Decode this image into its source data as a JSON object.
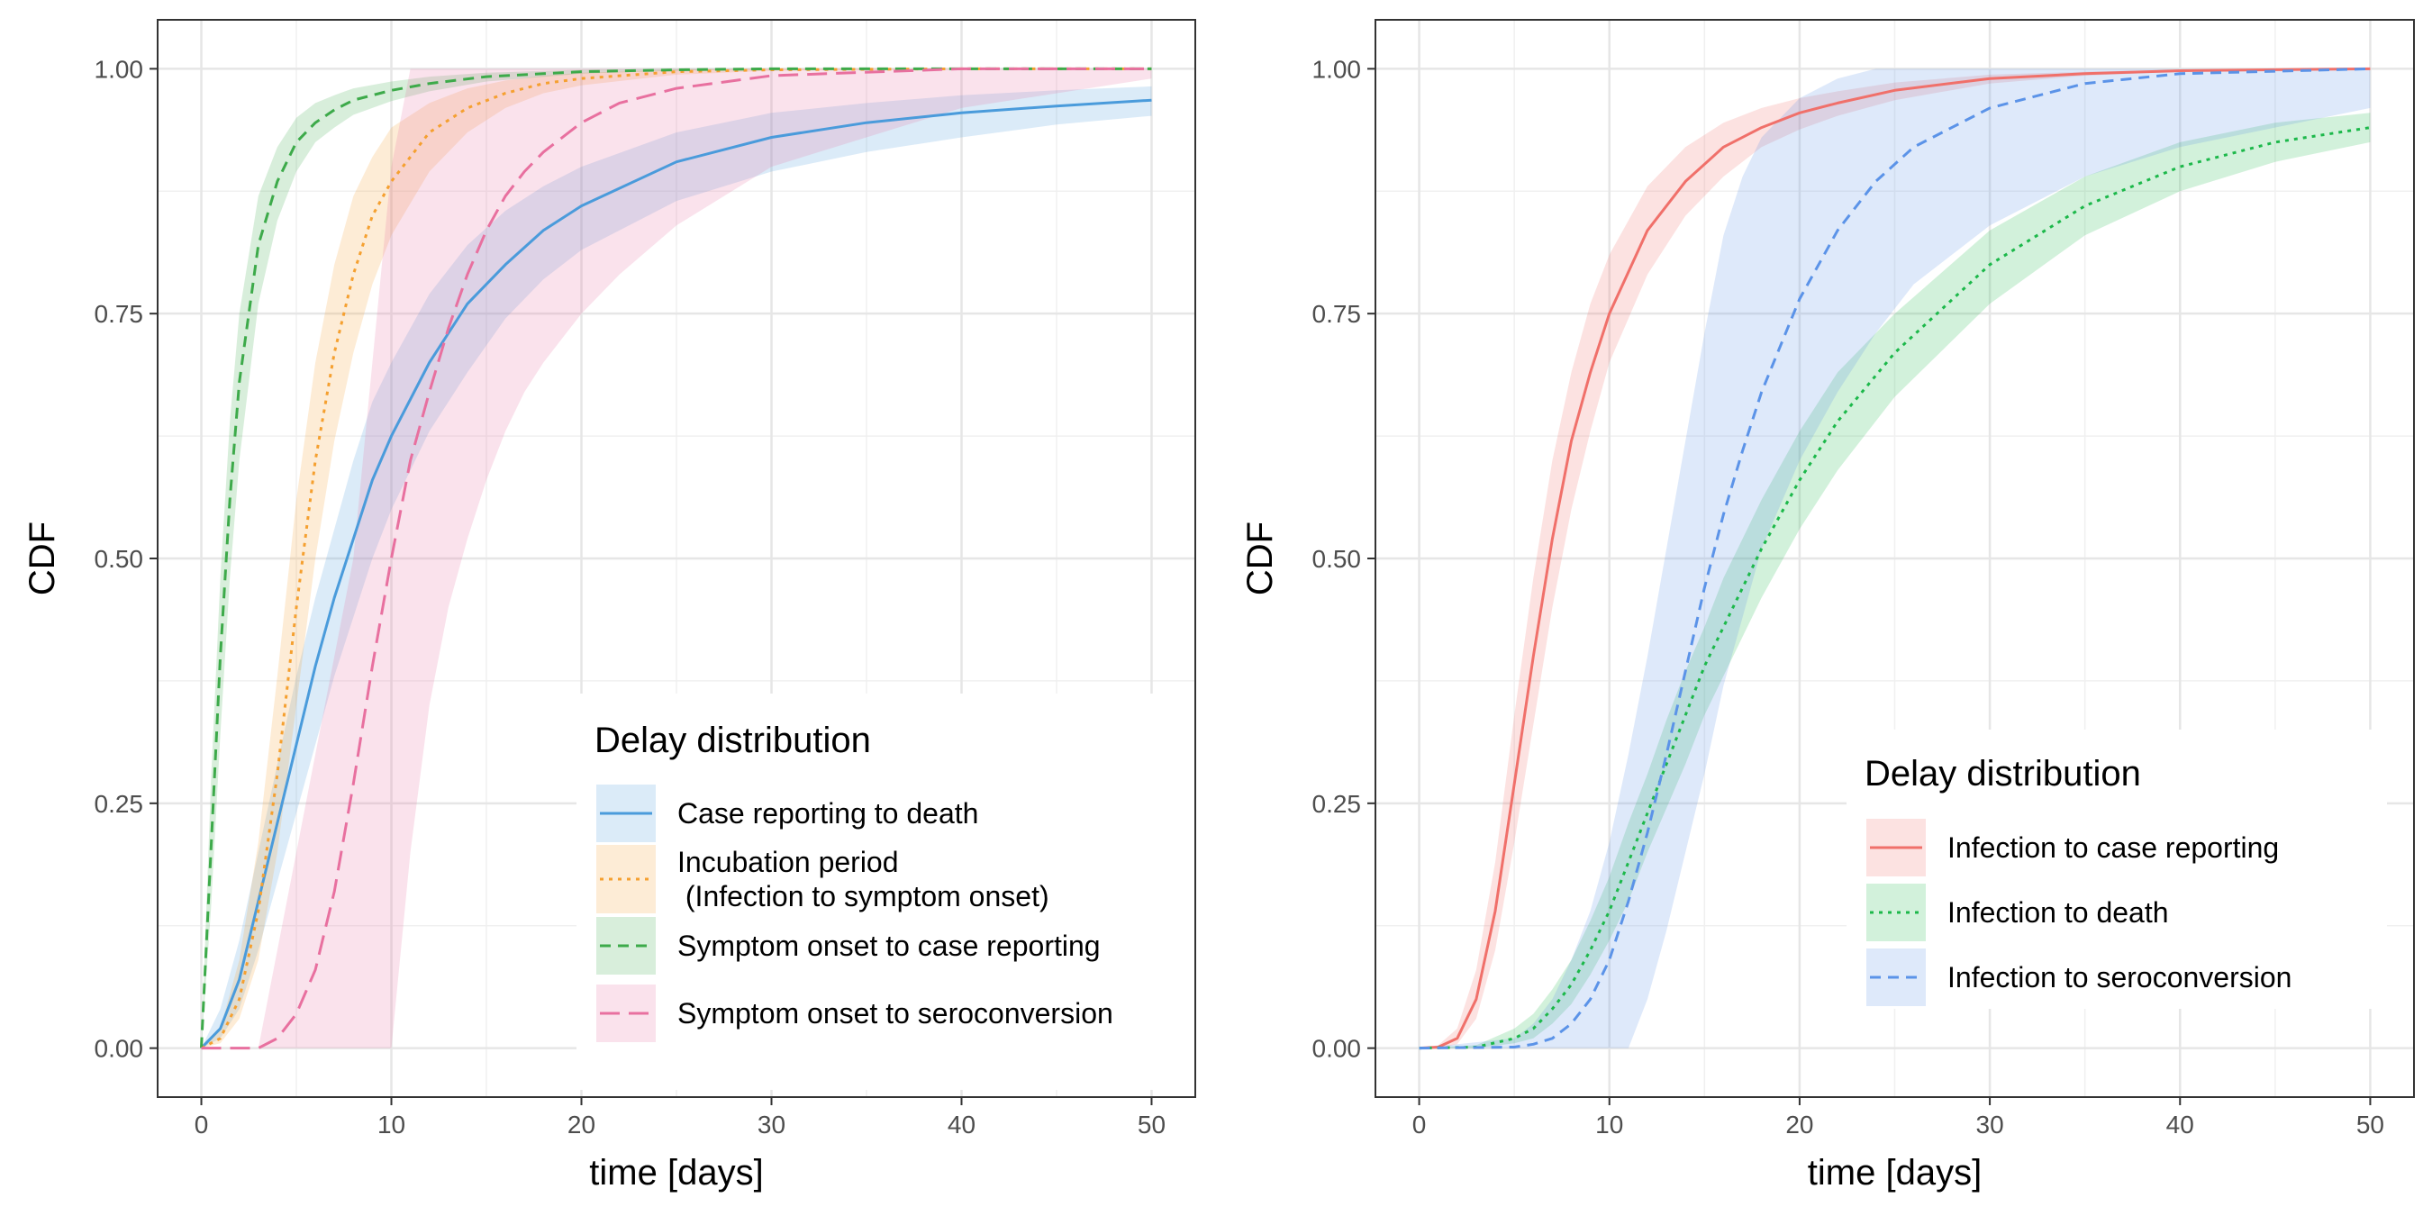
{
  "chart_data": [
    {
      "type": "line",
      "ylabel": "CDF",
      "xlabel": "time [days]",
      "xlim": [
        -2.3,
        52.3
      ],
      "ylim": [
        -0.05,
        1.05
      ],
      "xticks": [
        "0",
        "10",
        "20",
        "30",
        "40",
        "50"
      ],
      "yticks": [
        "0.00",
        "0.25",
        "0.50",
        "0.75",
        "1.00"
      ],
      "xtick_values": [
        0,
        10,
        20,
        30,
        40,
        50
      ],
      "ytick_values": [
        0,
        0.25,
        0.5,
        0.75,
        1
      ],
      "grid": true,
      "legend": {
        "title": "Delay distribution",
        "placement": "bottom-right"
      },
      "series": [
        {
          "name": "Case reporting to death",
          "color": "#4A9BDB",
          "dash": "solid",
          "x": [
            0,
            1,
            2,
            3,
            4,
            5,
            6,
            7,
            8,
            9,
            10,
            12,
            14,
            16,
            18,
            20,
            25,
            30,
            35,
            40,
            45,
            50
          ],
          "y": [
            0,
            0.02,
            0.07,
            0.15,
            0.23,
            0.31,
            0.39,
            0.46,
            0.52,
            0.58,
            0.625,
            0.7,
            0.76,
            0.8,
            0.835,
            0.86,
            0.905,
            0.93,
            0.945,
            0.955,
            0.962,
            0.968
          ],
          "lower": [
            0,
            0.01,
            0.04,
            0.1,
            0.17,
            0.24,
            0.31,
            0.38,
            0.44,
            0.5,
            0.55,
            0.63,
            0.69,
            0.745,
            0.785,
            0.815,
            0.865,
            0.895,
            0.915,
            0.93,
            0.943,
            0.952
          ],
          "upper": [
            0,
            0.04,
            0.11,
            0.2,
            0.29,
            0.38,
            0.46,
            0.53,
            0.6,
            0.66,
            0.7,
            0.77,
            0.82,
            0.855,
            0.88,
            0.9,
            0.935,
            0.955,
            0.965,
            0.973,
            0.978,
            0.982
          ]
        },
        {
          "name": "Incubation period\n (Infection to symptom onset)",
          "color": "#F5A030",
          "dash": "dotted",
          "x": [
            0,
            1,
            2,
            3,
            4,
            5,
            6,
            7,
            8,
            9,
            10,
            12,
            14,
            16,
            18,
            20,
            25,
            30,
            40,
            50
          ],
          "y": [
            0,
            0.01,
            0.05,
            0.14,
            0.28,
            0.45,
            0.6,
            0.71,
            0.79,
            0.85,
            0.885,
            0.935,
            0.96,
            0.975,
            0.985,
            0.99,
            0.997,
            0.999,
            1.0,
            1.0
          ],
          "lower": [
            0,
            0.005,
            0.03,
            0.09,
            0.2,
            0.35,
            0.5,
            0.62,
            0.71,
            0.78,
            0.83,
            0.895,
            0.935,
            0.96,
            0.975,
            0.983,
            0.994,
            0.998,
            1.0,
            1.0
          ],
          "upper": [
            0,
            0.02,
            0.09,
            0.21,
            0.38,
            0.56,
            0.7,
            0.8,
            0.87,
            0.91,
            0.94,
            0.965,
            0.98,
            0.988,
            0.993,
            0.996,
            0.999,
            1.0,
            1.0,
            1.0
          ]
        },
        {
          "name": "Symptom onset to case reporting",
          "color": "#3DAA4A",
          "dash": "dashed",
          "x": [
            0,
            0.5,
            1,
            1.5,
            2,
            3,
            4,
            5,
            6,
            7,
            8,
            10,
            12,
            15,
            20,
            25,
            30,
            40,
            50
          ],
          "y": [
            0,
            0.2,
            0.4,
            0.56,
            0.68,
            0.82,
            0.885,
            0.925,
            0.945,
            0.958,
            0.968,
            0.978,
            0.985,
            0.992,
            0.997,
            0.999,
            1.0,
            1.0,
            1.0
          ],
          "lower": [
            0,
            0.14,
            0.32,
            0.48,
            0.6,
            0.76,
            0.845,
            0.895,
            0.925,
            0.94,
            0.953,
            0.967,
            0.977,
            0.987,
            0.995,
            0.998,
            1.0,
            1.0,
            1.0
          ],
          "upper": [
            0,
            0.27,
            0.48,
            0.64,
            0.75,
            0.87,
            0.92,
            0.95,
            0.965,
            0.973,
            0.98,
            0.987,
            0.992,
            0.996,
            0.999,
            1.0,
            1.0,
            1.0,
            1.0
          ]
        },
        {
          "name": "Symptom onset to seroconversion",
          "color": "#E8709F",
          "dash": "longdash",
          "x": [
            0,
            3,
            4,
            5,
            6,
            7,
            8,
            9,
            10,
            11,
            12,
            13,
            14,
            15,
            16,
            17,
            18,
            20,
            22,
            25,
            30,
            40,
            50
          ],
          "y": [
            0,
            0,
            0.01,
            0.035,
            0.08,
            0.16,
            0.27,
            0.39,
            0.5,
            0.6,
            0.67,
            0.735,
            0.79,
            0.835,
            0.87,
            0.895,
            0.915,
            0.945,
            0.965,
            0.98,
            0.993,
            1.0,
            1.0
          ],
          "lower": [
            0,
            0,
            0,
            0,
            0,
            0,
            0,
            0,
            0,
            0.2,
            0.35,
            0.45,
            0.52,
            0.58,
            0.63,
            0.67,
            0.7,
            0.75,
            0.79,
            0.84,
            0.9,
            0.96,
            0.99
          ],
          "upper": [
            0,
            0,
            0.1,
            0.2,
            0.3,
            0.4,
            0.5,
            0.7,
            0.9,
            1.0,
            1.0,
            1.0,
            1.0,
            1.0,
            1.0,
            1.0,
            1.0,
            1.0,
            1.0,
            1.0,
            1.0,
            1.0,
            1.0
          ]
        }
      ]
    },
    {
      "type": "line",
      "ylabel": "CDF",
      "xlabel": "time [days]",
      "xlim": [
        -2.3,
        52.3
      ],
      "ylim": [
        -0.05,
        1.05
      ],
      "xticks": [
        "0",
        "10",
        "20",
        "30",
        "40",
        "50"
      ],
      "yticks": [
        "0.00",
        "0.25",
        "0.50",
        "0.75",
        "1.00"
      ],
      "xtick_values": [
        0,
        10,
        20,
        30,
        40,
        50
      ],
      "ytick_values": [
        0,
        0.25,
        0.5,
        0.75,
        1
      ],
      "grid": true,
      "legend": {
        "title": "Delay distribution",
        "placement": "bottom-right"
      },
      "series": [
        {
          "name": "Infection to case reporting",
          "color": "#F0706A",
          "dash": "solid",
          "x": [
            0,
            1,
            2,
            3,
            4,
            5,
            6,
            7,
            8,
            9,
            10,
            12,
            14,
            16,
            18,
            20,
            22,
            25,
            30,
            35,
            40,
            50
          ],
          "y": [
            0,
            0.001,
            0.01,
            0.05,
            0.14,
            0.27,
            0.4,
            0.52,
            0.62,
            0.69,
            0.75,
            0.835,
            0.885,
            0.92,
            0.94,
            0.955,
            0.965,
            0.978,
            0.99,
            0.995,
            0.998,
            1.0
          ],
          "lower": [
            0,
            0,
            0.004,
            0.03,
            0.1,
            0.21,
            0.33,
            0.45,
            0.55,
            0.63,
            0.7,
            0.79,
            0.85,
            0.89,
            0.92,
            0.938,
            0.952,
            0.968,
            0.985,
            0.993,
            0.997,
            1.0
          ],
          "upper": [
            0,
            0.003,
            0.02,
            0.08,
            0.19,
            0.34,
            0.48,
            0.6,
            0.69,
            0.76,
            0.81,
            0.88,
            0.92,
            0.945,
            0.96,
            0.97,
            0.977,
            0.986,
            0.994,
            0.997,
            0.999,
            1.0
          ]
        },
        {
          "name": "Infection to death",
          "color": "#1CB84A",
          "dash": "dotted",
          "x": [
            0,
            3,
            5,
            6,
            7,
            8,
            9,
            10,
            11,
            12,
            13,
            14,
            15,
            16,
            18,
            20,
            22,
            25,
            30,
            35,
            40,
            45,
            50
          ],
          "y": [
            0,
            0.001,
            0.01,
            0.02,
            0.04,
            0.065,
            0.1,
            0.14,
            0.19,
            0.24,
            0.29,
            0.34,
            0.39,
            0.43,
            0.51,
            0.58,
            0.64,
            0.71,
            0.8,
            0.86,
            0.9,
            0.925,
            0.94
          ],
          "lower": [
            0,
            0,
            0.005,
            0.01,
            0.025,
            0.045,
            0.075,
            0.11,
            0.15,
            0.2,
            0.245,
            0.29,
            0.34,
            0.38,
            0.46,
            0.53,
            0.59,
            0.665,
            0.76,
            0.83,
            0.875,
            0.905,
            0.925
          ],
          "upper": [
            0,
            0.003,
            0.02,
            0.035,
            0.06,
            0.09,
            0.13,
            0.175,
            0.23,
            0.28,
            0.335,
            0.385,
            0.43,
            0.48,
            0.56,
            0.63,
            0.69,
            0.75,
            0.835,
            0.89,
            0.925,
            0.945,
            0.955
          ]
        },
        {
          "name": "Infection to seroconversion",
          "color": "#5B93E8",
          "dash": "dashed",
          "x": [
            0,
            5,
            6,
            7,
            8,
            9,
            10,
            11,
            12,
            13,
            14,
            15,
            16,
            17,
            18,
            20,
            22,
            24,
            26,
            30,
            35,
            40,
            50
          ],
          "y": [
            0,
            0.001,
            0.004,
            0.01,
            0.025,
            0.05,
            0.09,
            0.15,
            0.22,
            0.3,
            0.385,
            0.47,
            0.545,
            0.61,
            0.67,
            0.765,
            0.835,
            0.885,
            0.92,
            0.96,
            0.985,
            0.995,
            1.0
          ],
          "lower": [
            0,
            0,
            0,
            0,
            0,
            0,
            0,
            0,
            0.05,
            0.12,
            0.2,
            0.28,
            0.37,
            0.44,
            0.51,
            0.6,
            0.67,
            0.73,
            0.78,
            0.84,
            0.89,
            0.92,
            0.96
          ],
          "upper": [
            0,
            0.01,
            0.025,
            0.05,
            0.09,
            0.14,
            0.21,
            0.3,
            0.4,
            0.51,
            0.62,
            0.73,
            0.83,
            0.89,
            0.93,
            0.97,
            0.99,
            1.0,
            1.0,
            1.0,
            1.0,
            1.0,
            1.0
          ]
        }
      ]
    }
  ]
}
